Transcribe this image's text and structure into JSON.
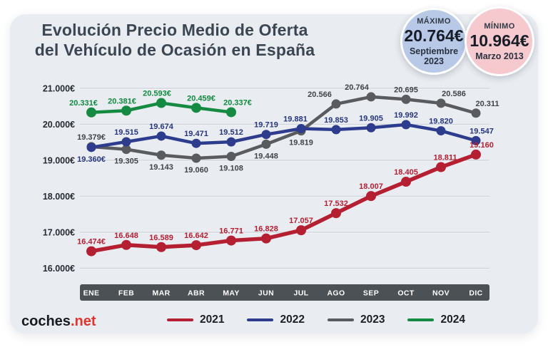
{
  "title": {
    "line1": "Evolución Precio Medio de Oferta",
    "line2": "del Vehículo de Ocasión en España"
  },
  "badges": {
    "max": {
      "label": "MÁXIMO",
      "value": "20.764€",
      "date": "Septiembre 2023",
      "bg": "#b7c9e7"
    },
    "min": {
      "label": "MÍNIMO",
      "value": "10.964€",
      "date": "Marzo 2013",
      "bg": "#f5c9cd"
    }
  },
  "logo": {
    "text_dark": "coches",
    "dot": ".",
    "text_red": "net"
  },
  "chart_data": {
    "type": "line",
    "title": "Evolución Precio Medio de Oferta del Vehículo de Ocasión en España",
    "categories": [
      "ENE",
      "FEB",
      "MAR",
      "ABR",
      "MAY",
      "JUN",
      "JUL",
      "AGO",
      "SEP",
      "OCT",
      "NOV",
      "DIC"
    ],
    "ylim": [
      16000,
      21000
    ],
    "grid": "horizontal",
    "legend_position": "bottom",
    "y_ticks": {
      "labels": [
        "21.000€",
        "20.000€",
        "19.000€",
        "18.000€",
        "17.000€",
        "16.000€"
      ],
      "values": [
        21000,
        20000,
        19000,
        18000,
        17000,
        16000
      ]
    },
    "series": [
      {
        "name": "2021",
        "color": "#b41f31",
        "label_color": "#b41f31",
        "values": [
          16474,
          16648,
          16589,
          16642,
          16771,
          16828,
          17057,
          17532,
          18007,
          18405,
          18811,
          19160
        ],
        "labels": [
          "16.474€",
          "16.648",
          "16.589",
          "16.642",
          "16.771",
          "16.828",
          "17.057",
          "17.532",
          "18.007",
          "18.405",
          "18.811",
          "19.160"
        ],
        "label_side": [
          "above",
          "above",
          "above",
          "above",
          "above",
          "above",
          "above",
          "above",
          "above",
          "above",
          "above",
          "above"
        ],
        "label_dx": [
          0,
          0,
          0,
          0,
          0,
          0,
          0,
          0,
          0,
          0,
          6,
          8
        ]
      },
      {
        "name": "2022",
        "color": "#2d3c8d",
        "label_color": "#26357f",
        "values": [
          19360,
          19515,
          19674,
          19471,
          19512,
          19719,
          19881,
          19853,
          19905,
          19992,
          19820,
          19547
        ],
        "labels": [
          "19.360€",
          "19.515",
          "19.674",
          "19.471",
          "19.512",
          "19.719",
          "19.881",
          "19.853",
          "19.905",
          "19.992",
          "19.820",
          "19.547"
        ],
        "label_side": [
          "below",
          "above",
          "above",
          "above",
          "above",
          "above",
          "above",
          "above",
          "above",
          "above",
          "above",
          "above"
        ],
        "label_dx": [
          0,
          0,
          0,
          0,
          0,
          0,
          -8,
          0,
          0,
          0,
          0,
          8
        ]
      },
      {
        "name": "2023",
        "color": "#595b5e",
        "label_color": "#404348",
        "values": [
          19379,
          19305,
          19143,
          19060,
          19108,
          19448,
          19819,
          20566,
          20764,
          20695,
          20586,
          20311
        ],
        "labels": [
          "19.379€",
          "19.305",
          "19.143",
          "19.060",
          "19.108",
          "19.448",
          "19.819",
          "20.566",
          "20.764",
          "20.695",
          "20.586",
          "20.311"
        ],
        "label_side": [
          "above",
          "below",
          "below",
          "below",
          "below",
          "below",
          "below",
          "above",
          "above",
          "above",
          "above",
          "above"
        ],
        "label_dx": [
          0,
          0,
          0,
          0,
          0,
          0,
          0,
          -23,
          -20,
          0,
          18,
          16
        ]
      },
      {
        "name": "2024",
        "color": "#158a42",
        "label_color": "#0f8a3e",
        "values": [
          20331,
          20381,
          20593,
          20459,
          20337
        ],
        "labels": [
          "20.331€",
          "20.381€",
          "20.593€",
          "20.459€",
          "20.337€"
        ],
        "label_side": [
          "above",
          "above",
          "above",
          "above",
          "above"
        ],
        "label_dx": [
          -11,
          -6,
          -6,
          7,
          9
        ]
      }
    ],
    "x_axis_bar_color": "#4c5156",
    "x_axis_text_color": "#ffffff"
  }
}
